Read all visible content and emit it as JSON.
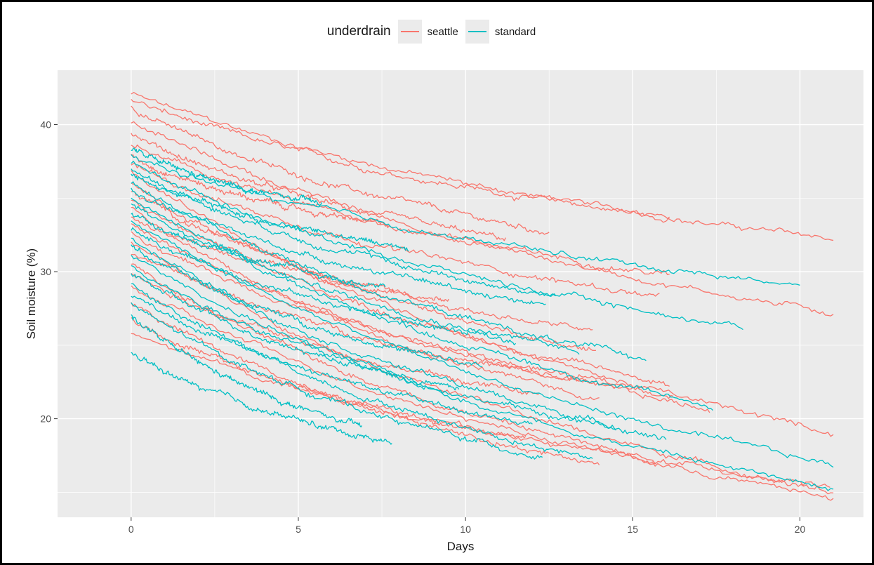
{
  "chart_data": {
    "type": "line",
    "xlabel": "Days",
    "ylabel": "Soil moisture (%)",
    "xlim": [
      -2.2,
      21.9
    ],
    "ylim": [
      13.3,
      43.7
    ],
    "x_ticks": [
      0,
      5,
      10,
      15,
      20
    ],
    "y_ticks": [
      20,
      30,
      40
    ],
    "grid": true,
    "legend": {
      "title": "underdrain",
      "position": "top",
      "entries": [
        {
          "label": "seattle",
          "color": "#f8766d"
        },
        {
          "label": "standard",
          "color": "#00bfc4"
        }
      ]
    },
    "series_groups": [
      {
        "name": "seattle",
        "color": "#f8766d",
        "curves": [
          {
            "start": 42.1,
            "end": 32.2,
            "x_end": 21
          },
          {
            "start": 41.7,
            "end": 33.7,
            "x_end": 16.1
          },
          {
            "start": 41.2,
            "end": 32.7,
            "x_end": 12.5
          },
          {
            "start": 40.2,
            "end": 27.2,
            "x_end": 21
          },
          {
            "start": 39.4,
            "end": 32.2,
            "x_end": 11.2
          },
          {
            "start": 38.6,
            "end": 29.8,
            "x_end": 16.1
          },
          {
            "start": 37.9,
            "end": 33.1,
            "x_end": 7.7
          },
          {
            "start": 37.3,
            "end": 28.3,
            "x_end": 15.8
          },
          {
            "start": 36.7,
            "end": 19.0,
            "x_end": 21
          },
          {
            "start": 36.0,
            "end": 24.6,
            "x_end": 13.9
          },
          {
            "start": 35.5,
            "end": 27.9,
            "x_end": 9.5
          },
          {
            "start": 34.9,
            "end": 22.4,
            "x_end": 16.1
          },
          {
            "start": 34.4,
            "end": 21.3,
            "x_end": 14.0
          },
          {
            "start": 33.8,
            "end": 26.0,
            "x_end": 13.8
          },
          {
            "start": 33.2,
            "end": 20.6,
            "x_end": 17.3
          },
          {
            "start": 32.6,
            "end": 21.6,
            "x_end": 16.2
          },
          {
            "start": 32.0,
            "end": 15.0,
            "x_end": 21
          },
          {
            "start": 31.3,
            "end": 22.1,
            "x_end": 14.5
          },
          {
            "start": 30.6,
            "end": 17.2,
            "x_end": 15.7
          },
          {
            "start": 29.9,
            "end": 21.6,
            "x_end": 12.2
          },
          {
            "start": 29.0,
            "end": 14.6,
            "x_end": 21
          },
          {
            "start": 27.9,
            "end": 16.9,
            "x_end": 14.0
          },
          {
            "start": 26.8,
            "end": 18.6,
            "x_end": 11.8
          },
          {
            "start": 25.8,
            "end": 15.5,
            "x_end": 20.9
          }
        ]
      },
      {
        "name": "standard",
        "color": "#00bfc4",
        "curves": [
          {
            "start": 38.3,
            "end": 34.6,
            "x_end": 5.7
          },
          {
            "start": 37.8,
            "end": 29.1,
            "x_end": 20.0
          },
          {
            "start": 37.4,
            "end": 26.2,
            "x_end": 18.3
          },
          {
            "start": 37.0,
            "end": 28.3,
            "x_end": 12.7
          },
          {
            "start": 36.6,
            "end": 31.6,
            "x_end": 8.3
          },
          {
            "start": 36.1,
            "end": 24.0,
            "x_end": 15.4
          },
          {
            "start": 35.6,
            "end": 27.8,
            "x_end": 12.4
          },
          {
            "start": 35.1,
            "end": 20.8,
            "x_end": 17.4
          },
          {
            "start": 34.6,
            "end": 24.6,
            "x_end": 13.4
          },
          {
            "start": 34.0,
            "end": 28.9,
            "x_end": 7.6
          },
          {
            "start": 33.5,
            "end": 16.8,
            "x_end": 21
          },
          {
            "start": 32.9,
            "end": 25.2,
            "x_end": 11.5
          },
          {
            "start": 32.3,
            "end": 18.7,
            "x_end": 16.0
          },
          {
            "start": 31.7,
            "end": 23.5,
            "x_end": 10.5
          },
          {
            "start": 31.1,
            "end": 15.2,
            "x_end": 21
          },
          {
            "start": 30.5,
            "end": 19.3,
            "x_end": 14.5
          },
          {
            "start": 29.9,
            "end": 22.0,
            "x_end": 9.8
          },
          {
            "start": 29.2,
            "end": 17.3,
            "x_end": 13.8
          },
          {
            "start": 28.5,
            "end": 19.6,
            "x_end": 12.0
          },
          {
            "start": 27.8,
            "end": 17.4,
            "x_end": 12.3
          },
          {
            "start": 27.0,
            "end": 19.4,
            "x_end": 6.9
          },
          {
            "start": 24.5,
            "end": 18.4,
            "x_end": 7.8
          }
        ]
      }
    ]
  }
}
